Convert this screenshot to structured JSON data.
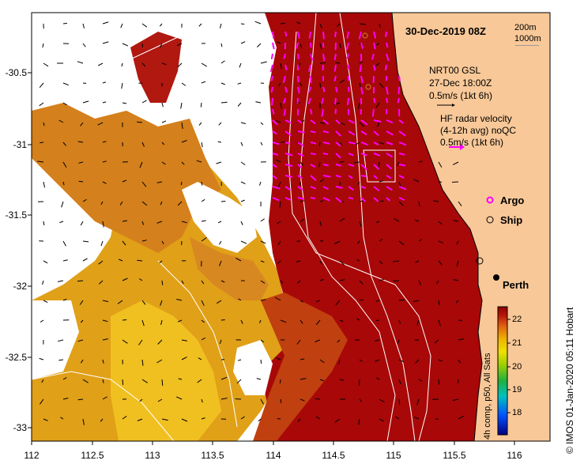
{
  "map": {
    "title": "30-Dec-2019 08Z",
    "date_stamp": "30-Dec-2019 08Z",
    "isobath_labels": [
      "200m",
      "1000m"
    ],
    "gsl_text": [
      "NRT00 GSL",
      "27-Dec 18:00Z",
      "0.5m/s (1kt 6h)"
    ],
    "hf_text": [
      "HF radar velocity",
      "(4-12h avg) noQC",
      "0.5m/s (1kt 6h)"
    ],
    "legend": {
      "argo": "Argo",
      "ship": "Ship"
    },
    "city": "Perth",
    "x_ticks": [
      "112",
      "112.5",
      "113",
      "113.5",
      "114",
      "114.5",
      "115",
      "115.5",
      "116"
    ],
    "y_ticks": [
      "-30.5",
      "-31",
      "-31.5",
      "-32",
      "-32.5",
      "-33"
    ],
    "colorbar": {
      "ticks": [
        "22",
        "21",
        "20",
        "19",
        "18"
      ],
      "label": "4h comp, p50, All Sats",
      "low_color": "#000080",
      "high_color": "#8b0000"
    },
    "credit": "© IMOS 01-Jan-2020 05:11 Hobart",
    "colors": {
      "land": "#f8c898",
      "sst_warm": "#e8b010",
      "sst_mid": "#d07018",
      "sst_hot": "#a80808",
      "hf_arrow": "#ff00ff",
      "gsl_arrow": "#000000"
    }
  }
}
